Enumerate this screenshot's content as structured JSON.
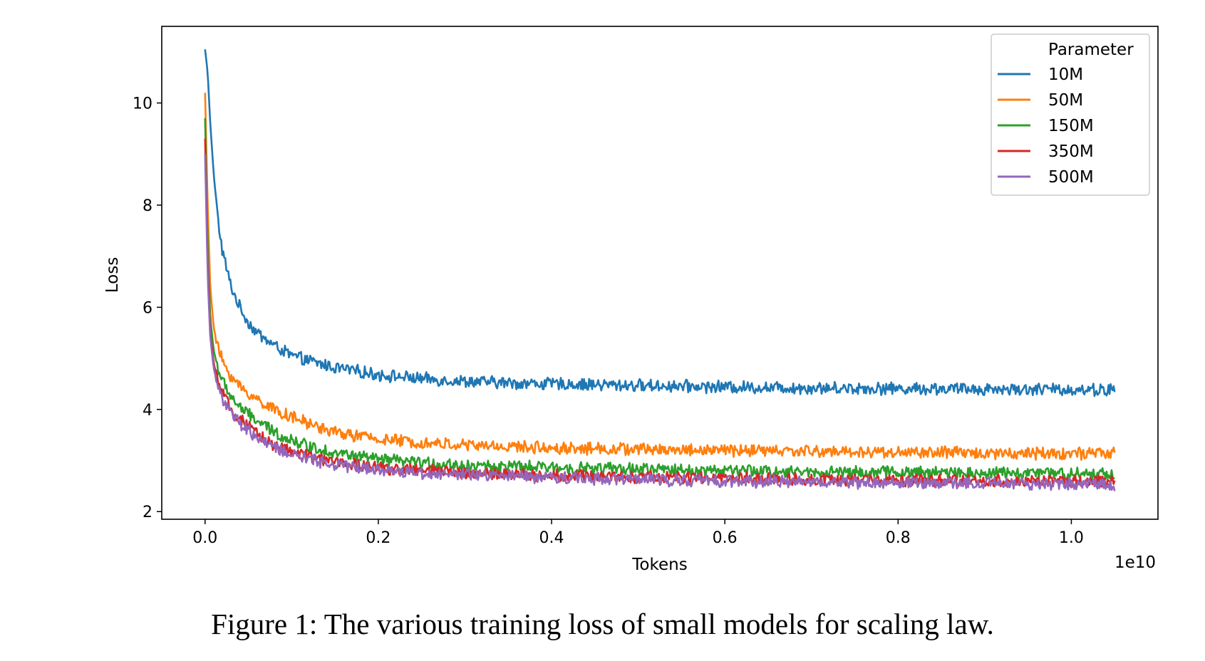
{
  "caption": "Figure 1: The various training loss of small models for scaling law.",
  "chart_data": {
    "type": "line",
    "title": "",
    "xlabel": "Tokens",
    "ylabel": "Loss",
    "x_offset_label": "1e10",
    "xlim": [
      -0.05,
      1.1
    ],
    "ylim": [
      1.85,
      11.5
    ],
    "x_ticks": [
      0.0,
      0.2,
      0.4,
      0.6,
      0.8,
      1.0
    ],
    "x_tick_labels": [
      "0.0",
      "0.2",
      "0.4",
      "0.6",
      "0.8",
      "1.0"
    ],
    "y_ticks": [
      2,
      4,
      6,
      8,
      10
    ],
    "y_tick_labels": [
      "2",
      "4",
      "6",
      "8",
      "10"
    ],
    "legend_title": "Parameter",
    "legend_position": "top-right",
    "x": [
      0.0,
      0.003,
      0.006,
      0.01,
      0.015,
      0.02,
      0.03,
      0.04,
      0.05,
      0.06,
      0.08,
      0.1,
      0.12,
      0.15,
      0.2,
      0.25,
      0.3,
      0.35,
      0.4,
      0.5,
      0.6,
      0.7,
      0.8,
      0.9,
      1.0,
      1.05
    ],
    "series": [
      {
        "name": "10M",
        "color": "#1f77b4",
        "values": [
          11.05,
          10.6,
          9.6,
          8.6,
          7.7,
          7.1,
          6.4,
          6.0,
          5.7,
          5.5,
          5.25,
          5.05,
          4.95,
          4.82,
          4.68,
          4.6,
          4.55,
          4.52,
          4.5,
          4.47,
          4.44,
          4.42,
          4.41,
          4.4,
          4.39,
          4.38
        ]
      },
      {
        "name": "50M",
        "color": "#ff7f0e",
        "values": [
          10.2,
          8.0,
          6.4,
          5.6,
          5.2,
          4.95,
          4.65,
          4.45,
          4.3,
          4.2,
          4.0,
          3.85,
          3.72,
          3.55,
          3.42,
          3.35,
          3.3,
          3.27,
          3.25,
          3.22,
          3.2,
          3.18,
          3.16,
          3.15,
          3.14,
          3.13
        ]
      },
      {
        "name": "150M",
        "color": "#2ca02c",
        "values": [
          9.7,
          7.2,
          5.8,
          5.15,
          4.8,
          4.55,
          4.25,
          4.05,
          3.9,
          3.78,
          3.55,
          3.4,
          3.28,
          3.15,
          3.02,
          2.95,
          2.9,
          2.88,
          2.86,
          2.83,
          2.8,
          2.78,
          2.77,
          2.76,
          2.75,
          2.74
        ]
      },
      {
        "name": "350M",
        "color": "#d62728",
        "values": [
          9.3,
          6.8,
          5.5,
          4.9,
          4.55,
          4.3,
          4.0,
          3.8,
          3.65,
          3.52,
          3.3,
          3.18,
          3.08,
          2.97,
          2.86,
          2.8,
          2.76,
          2.73,
          2.71,
          2.68,
          2.65,
          2.63,
          2.61,
          2.6,
          2.59,
          2.58
        ]
      },
      {
        "name": "500M",
        "color": "#9467bd",
        "values": [
          9.0,
          6.6,
          5.4,
          4.8,
          4.45,
          4.22,
          3.92,
          3.72,
          3.58,
          3.45,
          3.24,
          3.12,
          3.03,
          2.92,
          2.82,
          2.76,
          2.72,
          2.69,
          2.67,
          2.63,
          2.6,
          2.58,
          2.56,
          2.55,
          2.54,
          2.53
        ]
      }
    ]
  }
}
